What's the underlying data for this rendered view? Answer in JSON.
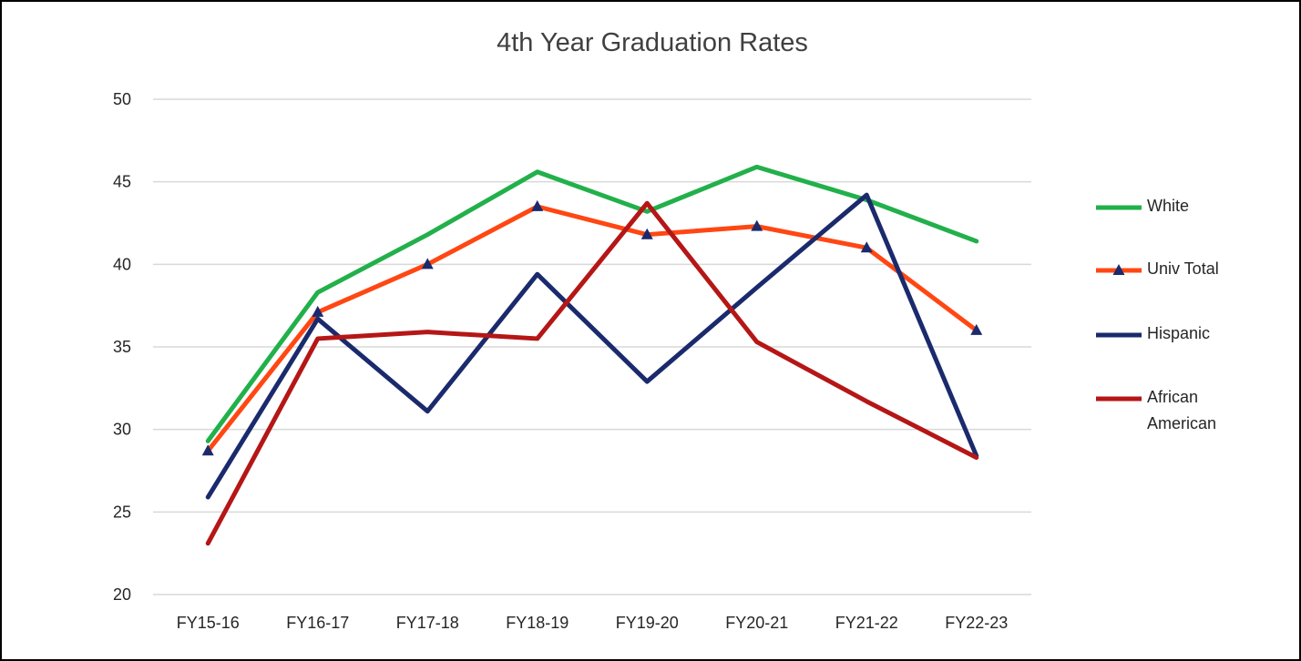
{
  "chart_data": {
    "type": "line",
    "title": "4th Year Graduation Rates",
    "xlabel": "",
    "ylabel": "",
    "ylim": [
      20,
      50
    ],
    "yticks": [
      20,
      25,
      30,
      35,
      40,
      45,
      50
    ],
    "grid": true,
    "legend_position": "right",
    "categories": [
      "FY15-16",
      "FY16-17",
      "FY17-18",
      "FY18-19",
      "FY19-20",
      "FY20-21",
      "FY21-22",
      "FY22-23"
    ],
    "series": [
      {
        "name": "White",
        "color": "#22b04b",
        "marker": "none",
        "values": [
          29.3,
          38.3,
          41.8,
          45.6,
          43.2,
          45.9,
          43.9,
          41.4
        ]
      },
      {
        "name": "Univ Total",
        "color": "#ff4713",
        "marker": "triangle",
        "marker_color": "#1a2a6c",
        "values": [
          28.7,
          37.1,
          40.0,
          43.5,
          41.8,
          42.3,
          41.0,
          36.0
        ]
      },
      {
        "name": "Hispanic",
        "color": "#1a2a6c",
        "marker": "none",
        "values": [
          25.9,
          36.7,
          31.1,
          39.4,
          32.9,
          38.6,
          44.2,
          28.4
        ]
      },
      {
        "name": "African American",
        "legend_lines": [
          "African",
          "American"
        ],
        "color": "#b51616",
        "marker": "none",
        "values": [
          23.1,
          35.5,
          35.9,
          35.5,
          43.7,
          35.3,
          31.7,
          28.3
        ]
      }
    ]
  }
}
